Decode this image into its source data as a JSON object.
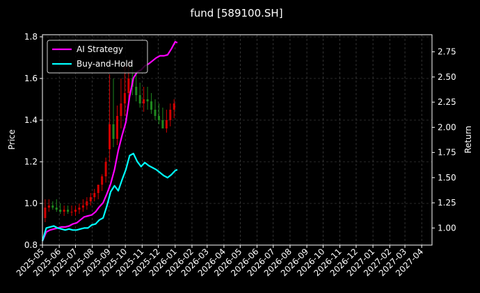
{
  "chart_data": {
    "type": "line",
    "title": "fund [589100.SH]",
    "ylabel": "Price",
    "y2label": "Return",
    "xlim": [
      "2025-05-01",
      "2027-04-20"
    ],
    "ylim": [
      0.8,
      1.81
    ],
    "y2lim": [
      0.83,
      2.92
    ],
    "grid": true,
    "legend_position": "upper-left",
    "x_ticks": [
      "2025-05",
      "2025-06",
      "2025-07",
      "2025-08",
      "2025-09",
      "2025-10",
      "2025-11",
      "2025-12",
      "2026-01",
      "2026-02",
      "2026-03",
      "2026-04",
      "2026-05",
      "2026-06",
      "2026-07",
      "2026-08",
      "2026-09",
      "2026-10",
      "2026-11",
      "2026-12",
      "2027-01",
      "2027-02",
      "2027-03",
      "2027-04"
    ],
    "y_ticks": [
      0.8,
      1.0,
      1.2,
      1.4,
      1.6,
      1.8
    ],
    "y2_ticks": [
      1.0,
      1.25,
      1.5,
      1.75,
      2.0,
      2.25,
      2.5,
      2.75
    ],
    "y2_tick_labels": [
      "1.00",
      "1.25",
      "1.50",
      "1.75",
      "2.00",
      "2.25",
      "2.50",
      "2.75"
    ],
    "price_ohlc": {
      "dates": [
        "2025-05-06",
        "2025-05-13",
        "2025-05-20",
        "2025-05-27",
        "2025-06-03",
        "2025-06-10",
        "2025-06-17",
        "2025-06-24",
        "2025-07-01",
        "2025-07-08",
        "2025-07-15",
        "2025-07-22",
        "2025-07-29",
        "2025-08-05",
        "2025-08-12",
        "2025-08-19",
        "2025-08-26",
        "2025-09-02",
        "2025-09-09",
        "2025-09-16",
        "2025-09-23",
        "2025-09-30",
        "2025-10-07",
        "2025-10-14",
        "2025-10-21",
        "2025-10-28",
        "2025-11-04",
        "2025-11-11",
        "2025-11-18",
        "2025-11-25",
        "2025-12-02",
        "2025-12-09",
        "2025-12-16",
        "2025-12-23",
        "2025-12-30"
      ],
      "open": [
        0.93,
        0.98,
        0.99,
        0.98,
        0.97,
        0.96,
        0.97,
        0.96,
        0.96,
        0.97,
        0.98,
        0.99,
        1.01,
        1.03,
        1.05,
        1.09,
        1.13,
        1.26,
        1.38,
        1.31,
        1.42,
        1.48,
        1.53,
        1.6,
        1.56,
        1.52,
        1.48,
        1.5,
        1.49,
        1.45,
        1.42,
        1.4,
        1.36,
        1.4,
        1.45
      ],
      "high": [
        1.02,
        1.02,
        1.01,
        1.02,
        1.0,
        0.99,
        0.99,
        0.99,
        0.99,
        1.0,
        1.02,
        1.03,
        1.05,
        1.07,
        1.09,
        1.14,
        1.22,
        1.62,
        1.6,
        1.47,
        1.6,
        1.66,
        1.68,
        1.66,
        1.62,
        1.58,
        1.56,
        1.56,
        1.53,
        1.5,
        1.48,
        1.46,
        1.45,
        1.48,
        1.5
      ],
      "low": [
        0.91,
        0.96,
        0.97,
        0.96,
        0.95,
        0.94,
        0.95,
        0.94,
        0.94,
        0.95,
        0.96,
        0.97,
        0.99,
        1.01,
        1.02,
        1.06,
        1.1,
        1.2,
        1.27,
        1.28,
        1.36,
        1.42,
        1.48,
        1.52,
        1.49,
        1.46,
        1.44,
        1.45,
        1.43,
        1.4,
        1.38,
        1.36,
        1.34,
        1.37,
        1.41
      ],
      "close": [
        0.98,
        0.99,
        0.98,
        0.97,
        0.96,
        0.97,
        0.96,
        0.96,
        0.97,
        0.98,
        0.99,
        1.01,
        1.03,
        1.05,
        1.09,
        1.13,
        1.2,
        1.38,
        1.31,
        1.42,
        1.48,
        1.53,
        1.6,
        1.56,
        1.52,
        1.48,
        1.5,
        1.49,
        1.45,
        1.42,
        1.4,
        1.36,
        1.4,
        1.45,
        1.48
      ]
    },
    "series": [
      {
        "name": "AI Strategy",
        "color": "#ff00ff",
        "axis": "right",
        "x": [
          "2025-05-01",
          "2025-05-08",
          "2025-05-15",
          "2025-05-22",
          "2025-05-29",
          "2025-06-05",
          "2025-06-12",
          "2025-06-19",
          "2025-06-26",
          "2025-07-03",
          "2025-07-10",
          "2025-07-17",
          "2025-07-24",
          "2025-07-31",
          "2025-08-07",
          "2025-08-14",
          "2025-08-21",
          "2025-08-28",
          "2025-09-04",
          "2025-09-11",
          "2025-09-18",
          "2025-09-25",
          "2025-10-02",
          "2025-10-09",
          "2025-10-16",
          "2025-10-23",
          "2025-10-30",
          "2025-11-06",
          "2025-11-13",
          "2025-11-20",
          "2025-11-27",
          "2025-12-04",
          "2025-12-11",
          "2025-12-18",
          "2025-12-25",
          "2026-01-01",
          "2026-01-05"
        ],
        "values": [
          0.87,
          0.96,
          0.98,
          0.99,
          1.0,
          1.01,
          1.01,
          1.02,
          1.04,
          1.05,
          1.08,
          1.11,
          1.12,
          1.13,
          1.16,
          1.21,
          1.25,
          1.34,
          1.44,
          1.58,
          1.77,
          1.92,
          2.05,
          2.31,
          2.49,
          2.55,
          2.57,
          2.61,
          2.63,
          2.66,
          2.69,
          2.71,
          2.71,
          2.72,
          2.78,
          2.85,
          2.84
        ]
      },
      {
        "name": "Buy-and-Hold",
        "color": "#00ffff",
        "axis": "right",
        "x": [
          "2025-05-01",
          "2025-05-08",
          "2025-05-15",
          "2025-05-22",
          "2025-05-29",
          "2025-06-05",
          "2025-06-12",
          "2025-06-19",
          "2025-06-26",
          "2025-07-03",
          "2025-07-10",
          "2025-07-17",
          "2025-07-24",
          "2025-07-31",
          "2025-08-07",
          "2025-08-14",
          "2025-08-21",
          "2025-08-28",
          "2025-09-04",
          "2025-09-11",
          "2025-09-18",
          "2025-09-25",
          "2025-10-02",
          "2025-10-09",
          "2025-10-16",
          "2025-10-23",
          "2025-10-30",
          "2025-11-06",
          "2025-11-13",
          "2025-11-20",
          "2025-11-27",
          "2025-12-04",
          "2025-12-11",
          "2025-12-18",
          "2025-12-25",
          "2026-01-01",
          "2026-01-05"
        ],
        "values": [
          0.87,
          1.0,
          1.01,
          1.02,
          1.0,
          0.99,
          0.98,
          0.99,
          0.98,
          0.98,
          0.99,
          1.0,
          1.0,
          1.03,
          1.04,
          1.08,
          1.1,
          1.22,
          1.36,
          1.42,
          1.37,
          1.48,
          1.58,
          1.72,
          1.74,
          1.66,
          1.61,
          1.65,
          1.62,
          1.6,
          1.58,
          1.55,
          1.52,
          1.5,
          1.53,
          1.57,
          1.58
        ]
      }
    ]
  }
}
